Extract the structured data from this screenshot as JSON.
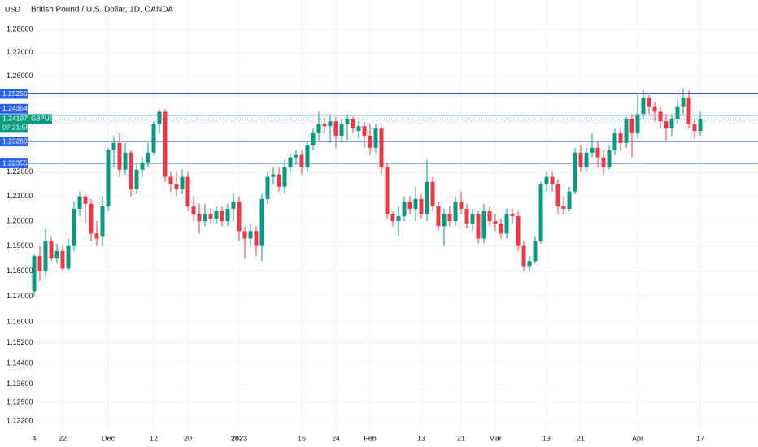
{
  "chart_data": {
    "type": "candlestick",
    "title": "British Pound / U.S. Dollar, 1D, OANDA",
    "currency": "USD",
    "symbol": "GBPUSD",
    "countdown": "07:21:55",
    "log_scale": true,
    "up_color": "#089981",
    "down_color": "#f23645",
    "level_color": "#2962ff",
    "ylim": [
      1.1183,
      1.2927
    ],
    "yticks": [
      {
        "value": 1.28,
        "label": "1.28000"
      },
      {
        "value": 1.27,
        "label": "1.27000"
      },
      {
        "value": 1.26,
        "label": "1.26000"
      },
      {
        "value": 1.22,
        "label": "1.22000"
      },
      {
        "value": 1.21,
        "label": "1.21000"
      },
      {
        "value": 1.2,
        "label": "1.20000"
      },
      {
        "value": 1.19,
        "label": "1.19000"
      },
      {
        "value": 1.18,
        "label": "1.18000"
      },
      {
        "value": 1.17,
        "label": "1.17000"
      },
      {
        "value": 1.16,
        "label": "1.16000"
      },
      {
        "value": 1.152,
        "label": "1.15200"
      },
      {
        "value": 1.144,
        "label": "1.14400"
      },
      {
        "value": 1.136,
        "label": "1.13600"
      },
      {
        "value": 1.129,
        "label": "1.12900"
      },
      {
        "value": 1.122,
        "label": "1.12200"
      }
    ],
    "levels": [
      {
        "value": 1.2525,
        "label": "1.25250"
      },
      {
        "value": 1.24354,
        "label": "1.24354"
      },
      {
        "value": 1.2326,
        "label": "1.23260"
      },
      {
        "value": 1.22355,
        "label": "1.22355"
      }
    ],
    "last_price": {
      "value": 1.24197,
      "label": "1.24197"
    },
    "categories": [
      "4",
      null,
      null,
      null,
      null,
      "22",
      null,
      null,
      null,
      null,
      null,
      null,
      null,
      "Dec",
      null,
      null,
      null,
      null,
      null,
      null,
      null,
      "12",
      null,
      null,
      null,
      null,
      null,
      "20",
      null,
      null,
      null,
      null,
      null,
      null,
      null,
      null,
      "2023",
      null,
      null,
      null,
      null,
      null,
      null,
      null,
      null,
      null,
      null,
      "16",
      null,
      null,
      null,
      null,
      null,
      "24",
      null,
      null,
      null,
      null,
      null,
      "Feb",
      null,
      null,
      null,
      null,
      null,
      null,
      null,
      null,
      "13",
      null,
      null,
      null,
      null,
      null,
      null,
      "21",
      null,
      null,
      null,
      null,
      null,
      "Mar",
      null,
      null,
      null,
      null,
      null,
      null,
      null,
      null,
      "13",
      null,
      null,
      null,
      null,
      null,
      "21",
      null,
      null,
      null,
      null,
      null,
      null,
      null,
      null,
      null,
      "Apr",
      null,
      null,
      null,
      null,
      null,
      null,
      null,
      null,
      null,
      null,
      "17"
    ],
    "ohlc": [
      [
        1.172,
        1.187,
        1.17,
        1.186
      ],
      [
        1.186,
        1.19,
        1.176,
        1.18
      ],
      [
        1.18,
        1.197,
        1.178,
        1.192
      ],
      [
        1.192,
        1.194,
        1.184,
        1.185
      ],
      [
        1.185,
        1.191,
        1.183,
        1.188
      ],
      [
        1.188,
        1.19,
        1.18,
        1.181
      ],
      [
        1.181,
        1.193,
        1.18,
        1.19
      ],
      [
        1.19,
        1.208,
        1.188,
        1.205
      ],
      [
        1.205,
        1.212,
        1.202,
        1.21
      ],
      [
        1.21,
        1.211,
        1.199,
        1.207
      ],
      [
        1.207,
        1.209,
        1.192,
        1.195
      ],
      [
        1.195,
        1.2,
        1.19,
        1.193
      ],
      [
        1.194,
        1.21,
        1.19,
        1.206
      ],
      [
        1.206,
        1.23,
        1.204,
        1.229
      ],
      [
        1.229,
        1.235,
        1.222,
        1.232
      ],
      [
        1.232,
        1.236,
        1.218,
        1.221
      ],
      [
        1.221,
        1.232,
        1.219,
        1.228
      ],
      [
        1.228,
        1.229,
        1.21,
        1.213
      ],
      [
        1.213,
        1.224,
        1.211,
        1.221
      ],
      [
        1.221,
        1.226,
        1.218,
        1.224
      ],
      [
        1.224,
        1.232,
        1.222,
        1.228
      ],
      [
        1.228,
        1.241,
        1.227,
        1.24
      ],
      [
        1.24,
        1.246,
        1.236,
        1.245
      ],
      [
        1.245,
        1.246,
        1.216,
        1.218
      ],
      [
        1.218,
        1.22,
        1.212,
        1.215
      ],
      [
        1.215,
        1.22,
        1.21,
        1.213
      ],
      [
        1.213,
        1.221,
        1.211,
        1.218
      ],
      [
        1.218,
        1.22,
        1.204,
        1.206
      ],
      [
        1.206,
        1.21,
        1.2,
        1.203
      ],
      [
        1.203,
        1.207,
        1.195,
        1.2
      ],
      [
        1.2,
        1.207,
        1.198,
        1.203
      ],
      [
        1.203,
        1.205,
        1.199,
        1.201
      ],
      [
        1.201,
        1.206,
        1.199,
        1.204
      ],
      [
        1.204,
        1.206,
        1.198,
        1.2
      ],
      [
        1.2,
        1.207,
        1.198,
        1.205
      ],
      [
        1.205,
        1.211,
        1.2,
        1.208
      ],
      [
        1.208,
        1.21,
        1.192,
        1.196
      ],
      [
        1.196,
        1.198,
        1.185,
        1.193
      ],
      [
        1.193,
        1.199,
        1.19,
        1.196
      ],
      [
        1.196,
        1.198,
        1.186,
        1.19
      ],
      [
        1.19,
        1.211,
        1.184,
        1.209
      ],
      [
        1.209,
        1.22,
        1.207,
        1.218
      ],
      [
        1.218,
        1.222,
        1.215,
        1.219
      ],
      [
        1.219,
        1.222,
        1.212,
        1.214
      ],
      [
        1.214,
        1.225,
        1.211,
        1.222
      ],
      [
        1.222,
        1.228,
        1.22,
        1.226
      ],
      [
        1.226,
        1.229,
        1.223,
        1.227
      ],
      [
        1.227,
        1.229,
        1.219,
        1.222
      ],
      [
        1.222,
        1.233,
        1.22,
        1.231
      ],
      [
        1.231,
        1.238,
        1.229,
        1.236
      ],
      [
        1.236,
        1.245,
        1.233,
        1.24
      ],
      [
        1.24,
        1.242,
        1.236,
        1.239
      ],
      [
        1.239,
        1.244,
        1.232,
        1.241
      ],
      [
        1.241,
        1.243,
        1.23,
        1.235
      ],
      [
        1.235,
        1.242,
        1.232,
        1.24
      ],
      [
        1.24,
        1.244,
        1.233,
        1.242
      ],
      [
        1.242,
        1.243,
        1.236,
        1.238
      ],
      [
        1.237,
        1.241,
        1.234,
        1.239
      ],
      [
        1.239,
        1.241,
        1.23,
        1.235
      ],
      [
        1.235,
        1.24,
        1.227,
        1.23
      ],
      [
        1.23,
        1.24,
        1.228,
        1.238
      ],
      [
        1.238,
        1.239,
        1.219,
        1.222
      ],
      [
        1.222,
        1.224,
        1.201,
        1.203
      ],
      [
        1.203,
        1.204,
        1.198,
        1.2
      ],
      [
        1.2,
        1.206,
        1.194,
        1.202
      ],
      [
        1.202,
        1.21,
        1.2,
        1.208
      ],
      [
        1.208,
        1.21,
        1.203,
        1.205
      ],
      [
        1.205,
        1.214,
        1.2,
        1.209
      ],
      [
        1.209,
        1.211,
        1.201,
        1.203
      ],
      [
        1.203,
        1.225,
        1.2,
        1.216
      ],
      [
        1.216,
        1.218,
        1.204,
        1.206
      ],
      [
        1.206,
        1.208,
        1.196,
        1.198
      ],
      [
        1.198,
        1.205,
        1.19,
        1.203
      ],
      [
        1.203,
        1.206,
        1.198,
        1.2
      ],
      [
        1.2,
        1.21,
        1.198,
        1.208
      ],
      [
        1.208,
        1.212,
        1.203,
        1.205
      ],
      [
        1.205,
        1.207,
        1.197,
        1.199
      ],
      [
        1.199,
        1.205,
        1.196,
        1.203
      ],
      [
        1.203,
        1.204,
        1.191,
        1.193
      ],
      [
        1.193,
        1.207,
        1.191,
        1.204
      ],
      [
        1.204,
        1.206,
        1.198,
        1.2
      ],
      [
        1.2,
        1.203,
        1.196,
        1.199
      ],
      [
        1.199,
        1.201,
        1.193,
        1.195
      ],
      [
        1.195,
        1.205,
        1.193,
        1.203
      ],
      [
        1.203,
        1.205,
        1.199,
        1.202
      ],
      [
        1.202,
        1.204,
        1.188,
        1.19
      ],
      [
        1.19,
        1.192,
        1.18,
        1.182
      ],
      [
        1.182,
        1.186,
        1.18,
        1.184
      ],
      [
        1.184,
        1.194,
        1.183,
        1.192
      ],
      [
        1.192,
        1.216,
        1.191,
        1.215
      ],
      [
        1.215,
        1.22,
        1.212,
        1.218
      ],
      [
        1.218,
        1.22,
        1.212,
        1.215
      ],
      [
        1.215,
        1.217,
        1.203,
        1.206
      ],
      [
        1.206,
        1.21,
        1.203,
        1.205
      ],
      [
        1.205,
        1.214,
        1.204,
        1.212
      ],
      [
        1.212,
        1.23,
        1.211,
        1.228
      ],
      [
        1.228,
        1.231,
        1.22,
        1.222
      ],
      [
        1.222,
        1.23,
        1.22,
        1.228
      ],
      [
        1.228,
        1.236,
        1.226,
        1.23
      ],
      [
        1.23,
        1.233,
        1.222,
        1.226
      ],
      [
        1.226,
        1.229,
        1.219,
        1.222
      ],
      [
        1.222,
        1.231,
        1.221,
        1.229
      ],
      [
        1.229,
        1.238,
        1.227,
        1.236
      ],
      [
        1.236,
        1.238,
        1.229,
        1.232
      ],
      [
        1.232,
        1.243,
        1.23,
        1.242
      ],
      [
        1.242,
        1.244,
        1.226,
        1.236
      ],
      [
        1.236,
        1.252,
        1.234,
        1.244
      ],
      [
        1.244,
        1.254,
        1.242,
        1.251
      ],
      [
        1.251,
        1.252,
        1.244,
        1.247
      ],
      [
        1.247,
        1.249,
        1.241,
        1.245
      ],
      [
        1.245,
        1.247,
        1.238,
        1.241
      ],
      [
        1.241,
        1.244,
        1.233,
        1.238
      ],
      [
        1.238,
        1.244,
        1.235,
        1.242
      ],
      [
        1.242,
        1.25,
        1.24,
        1.247
      ],
      [
        1.247,
        1.255,
        1.244,
        1.251
      ],
      [
        1.251,
        1.254,
        1.238,
        1.24
      ],
      [
        1.24,
        1.242,
        1.234,
        1.237
      ],
      [
        1.237,
        1.245,
        1.235,
        1.24197
      ]
    ]
  }
}
